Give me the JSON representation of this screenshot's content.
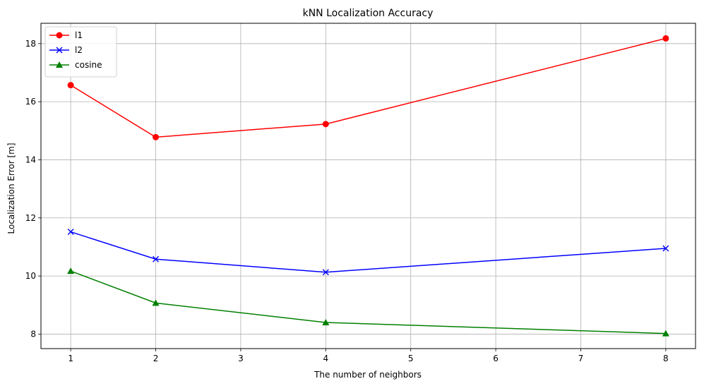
{
  "chart_data": {
    "type": "line",
    "title": "kNN Localization Accuracy",
    "xlabel": "The number of neighbors",
    "ylabel": "Localization Error [m]",
    "x": [
      1,
      2,
      4,
      8
    ],
    "xlim": [
      0.65,
      8.35
    ],
    "ylim": [
      7.5,
      18.7
    ],
    "xticks": [
      1,
      2,
      3,
      4,
      5,
      6,
      7,
      8
    ],
    "yticks": [
      8,
      10,
      12,
      14,
      16,
      18
    ],
    "grid": true,
    "legend_position": "top-left",
    "series": [
      {
        "name": "l1",
        "values": [
          16.57,
          14.78,
          15.23,
          18.18
        ],
        "color": "#ff0000",
        "marker": "circle"
      },
      {
        "name": "l2",
        "values": [
          11.52,
          10.58,
          10.13,
          10.95
        ],
        "color": "#0000ff",
        "marker": "x"
      },
      {
        "name": "cosine",
        "values": [
          10.17,
          9.07,
          8.4,
          8.02
        ],
        "color": "#008000",
        "marker": "triangle"
      }
    ]
  }
}
